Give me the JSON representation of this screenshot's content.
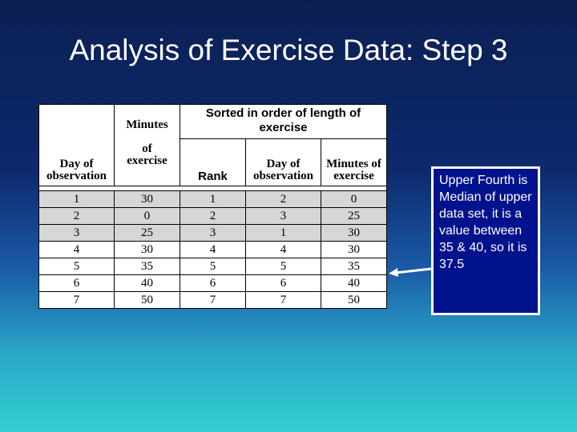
{
  "slide": {
    "title": "Analysis of Exercise Data: Step 3",
    "callout_text": "Upper Fourth is Median of upper data set, it is a value between 35 & 40, so it is 37.5",
    "colors": {
      "callout_bg": "#00128c",
      "text": "#ffffff"
    }
  },
  "table": {
    "headers": {
      "minutes": "Minutes",
      "day_of": "Day of",
      "observation": "observation",
      "of": "of",
      "exercise": "exercise",
      "sorted_title": "Sorted in order of length of exercise",
      "rank": "Rank",
      "minutes_of": "Minutes of"
    },
    "rows": [
      [
        "1",
        "30",
        "1",
        "2",
        "0"
      ],
      [
        "2",
        "0",
        "2",
        "3",
        "25"
      ],
      [
        "3",
        "25",
        "3",
        "1",
        "30"
      ],
      [
        "4",
        "30",
        "4",
        "4",
        "30"
      ],
      [
        "5",
        "35",
        "5",
        "5",
        "35"
      ],
      [
        "6",
        "40",
        "6",
        "6",
        "40"
      ],
      [
        "7",
        "50",
        "7",
        "7",
        "50"
      ]
    ]
  }
}
